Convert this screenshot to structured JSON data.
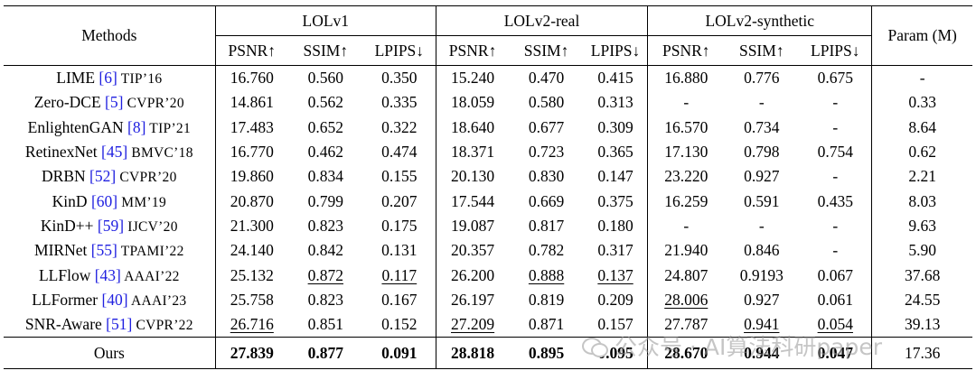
{
  "header": {
    "methods": "Methods",
    "param": "Param (M)",
    "groups": [
      "LOLv1",
      "LOLv2-real",
      "LOLv2-synthetic"
    ],
    "metrics": [
      "PSNR↑",
      "SSIM↑",
      "LPIPS↓"
    ]
  },
  "rows": [
    {
      "name": "LIME ",
      "ref": "[6]",
      "venue": " TIP’16",
      "v": [
        "16.760",
        "0.560",
        "0.350",
        "15.240",
        "0.470",
        "0.415",
        "16.880",
        "0.776",
        "0.675",
        "-"
      ]
    },
    {
      "name": "Zero-DCE ",
      "ref": "[5]",
      "venue": " CVPR’20",
      "v": [
        "14.861",
        "0.562",
        "0.335",
        "18.059",
        "0.580",
        "0.313",
        "-",
        "-",
        "-",
        "0.33"
      ]
    },
    {
      "name": "EnlightenGAN ",
      "ref": "[8]",
      "venue": " TIP’21",
      "v": [
        "17.483",
        "0.652",
        "0.322",
        "18.640",
        "0.677",
        "0.309",
        "16.570",
        "0.734",
        "-",
        "8.64"
      ]
    },
    {
      "name": "RetinexNet ",
      "ref": "[45]",
      "venue": " BMVC’18",
      "v": [
        "16.770",
        "0.462",
        "0.474",
        "18.371",
        "0.723",
        "0.365",
        "17.130",
        "0.798",
        "0.754",
        "0.62"
      ]
    },
    {
      "name": "DRBN ",
      "ref": "[52]",
      "venue": " CVPR’20",
      "v": [
        "19.860",
        "0.834",
        "0.155",
        "20.130",
        "0.830",
        "0.147",
        "23.220",
        "0.927",
        "-",
        "2.21"
      ]
    },
    {
      "name": "KinD ",
      "ref": "[60]",
      "venue": " MM’19",
      "v": [
        "20.870",
        "0.799",
        "0.207",
        "17.544",
        "0.669",
        "0.375",
        "16.259",
        "0.591",
        "0.435",
        "8.03"
      ]
    },
    {
      "name": "KinD++ ",
      "ref": "[59]",
      "venue": " IJCV’20",
      "v": [
        "21.300",
        "0.823",
        "0.175",
        "19.087",
        "0.817",
        "0.180",
        "-",
        "-",
        "-",
        "9.63"
      ]
    },
    {
      "name": "MIRNet ",
      "ref": "[55]",
      "venue": " TPAMI’22",
      "v": [
        "24.140",
        "0.842",
        "0.131",
        "20.357",
        "0.782",
        "0.317",
        "21.940",
        "0.846",
        "-",
        "5.90"
      ]
    },
    {
      "name": "LLFlow ",
      "ref": "[43]",
      "venue": " AAAI’22",
      "v": [
        "25.132",
        "0.872",
        "0.117",
        "26.200",
        "0.888",
        "0.137",
        "24.807",
        "0.9193",
        "0.067",
        "37.68"
      ]
    },
    {
      "name": "LLFormer ",
      "ref": "[40]",
      "venue": " AAAI’23",
      "v": [
        "25.758",
        "0.823",
        "0.167",
        "26.197",
        "0.819",
        "0.209",
        "28.006",
        "0.927",
        "0.061",
        "24.55"
      ]
    },
    {
      "name": "SNR-Aware ",
      "ref": "[51]",
      "venue": " CVPR’22",
      "v": [
        "26.716",
        "0.851",
        "0.152",
        "27.209",
        "0.871",
        "0.157",
        "27.787",
        "0.941",
        "0.054",
        "39.13"
      ]
    }
  ],
  "ours": {
    "name": "Ours",
    "v": [
      "27.839",
      "0.877",
      "0.091",
      "28.818",
      "0.895",
      "0.095",
      "28.670",
      "0.944",
      "0.047",
      "17.36"
    ]
  },
  "underlined": [
    [
      8,
      1
    ],
    [
      8,
      2
    ],
    [
      8,
      4
    ],
    [
      8,
      5
    ],
    [
      9,
      6
    ],
    [
      10,
      0
    ],
    [
      10,
      3
    ],
    [
      10,
      7
    ],
    [
      10,
      8
    ]
  ],
  "watermark": "公众号 · AI算法科研paper"
}
